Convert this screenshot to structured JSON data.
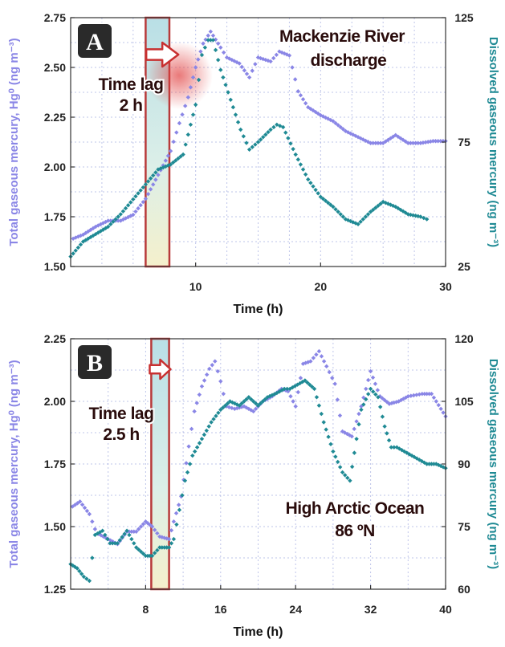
{
  "colors": {
    "tgm": "#8a86e6",
    "dgm": "#1f8a94",
    "lagFill": "#cfe8e8",
    "lagStroke": "#b83a3a",
    "grid": "#8a96d8"
  },
  "chart_data": [
    {
      "type": "scatter",
      "panel_label": "A",
      "xlabel": "Time (h)",
      "ylabel_left": "Total gaseous mercury, Hg⁰ (ng m⁻³)",
      "ylabel_right": "Dissolved gaseous mercury (ng m⁻³)",
      "xlim": [
        0,
        30
      ],
      "ylim_left": [
        1.5,
        2.75
      ],
      "ylim_right": [
        25,
        125
      ],
      "x_ticks": [
        "10",
        "20",
        "30"
      ],
      "y_left_ticks": [
        "1.50",
        "1.75",
        "2.00",
        "2.25",
        "2.50",
        "2.75"
      ],
      "y_right_ticks": [
        "25",
        "75",
        "125"
      ],
      "lag_band": [
        6.0,
        7.9
      ],
      "annotations": {
        "lag": [
          "Time lag",
          "2 h"
        ],
        "site": [
          "Mackenzie River",
          "discharge"
        ]
      },
      "series": [
        {
          "name": "TGM",
          "axis": "left",
          "points": [
            [
              0.2,
              1.64
            ],
            [
              1,
              1.66
            ],
            [
              2,
              1.7
            ],
            [
              3,
              1.73
            ],
            [
              4,
              1.73
            ],
            [
              5,
              1.76
            ],
            [
              6,
              1.84
            ],
            [
              7,
              1.96
            ],
            [
              8,
              2.08
            ],
            [
              8.7,
              2.22
            ],
            [
              9.4,
              2.35
            ],
            [
              10,
              2.5
            ],
            [
              10.6,
              2.62
            ],
            [
              11.2,
              2.68
            ],
            [
              12,
              2.6
            ],
            [
              12.5,
              2.55
            ],
            [
              13.5,
              2.52
            ],
            [
              14.3,
              2.45
            ],
            [
              15,
              2.55
            ],
            [
              16,
              2.53
            ],
            [
              16.7,
              2.58
            ],
            [
              17.5,
              2.56
            ],
            [
              18.2,
              2.38
            ],
            [
              19,
              2.3
            ],
            [
              20,
              2.26
            ],
            [
              21,
              2.23
            ],
            [
              22,
              2.18
            ],
            [
              23,
              2.15
            ],
            [
              24,
              2.12
            ],
            [
              25,
              2.12
            ],
            [
              26,
              2.16
            ],
            [
              27,
              2.12
            ],
            [
              28,
              2.12
            ],
            [
              29,
              2.13
            ],
            [
              30,
              2.13
            ]
          ]
        },
        {
          "name": "DGM",
          "axis": "right",
          "points": [
            [
              0,
              29
            ],
            [
              1,
              35
            ],
            [
              2,
              38
            ],
            [
              3,
              41
            ],
            [
              4,
              46
            ],
            [
              5,
              52
            ],
            [
              6,
              58
            ],
            [
              7,
              64
            ],
            [
              8,
              66
            ],
            [
              9,
              70
            ],
            [
              10,
              90
            ],
            [
              10.5,
              110
            ],
            [
              11,
              116
            ],
            [
              11.4,
              116
            ],
            [
              12,
              104
            ],
            [
              12.8,
              92
            ],
            [
              13.6,
              80
            ],
            [
              14.3,
              72
            ],
            [
              15,
              75
            ],
            [
              16,
              80
            ],
            [
              16.5,
              82
            ],
            [
              17,
              81
            ],
            [
              18,
              70
            ],
            [
              19,
              60
            ],
            [
              20,
              53
            ],
            [
              21,
              49
            ],
            [
              22,
              44
            ],
            [
              23,
              42
            ],
            [
              24,
              47
            ],
            [
              25,
              51
            ],
            [
              26,
              49
            ],
            [
              27,
              46
            ],
            [
              28,
              45
            ],
            [
              28.5,
              44
            ]
          ]
        }
      ]
    },
    {
      "type": "scatter",
      "panel_label": "B",
      "xlabel": "Time (h)",
      "ylabel_left": "Total gaseous mercury, Hg⁰ (ng m⁻³)",
      "ylabel_right": "Dissolved gaseous mercury (ng m⁻³)",
      "xlim": [
        0,
        40
      ],
      "ylim_left": [
        1.25,
        2.25
      ],
      "ylim_right": [
        60,
        120
      ],
      "x_ticks": [
        "8",
        "16",
        "24",
        "32",
        "40"
      ],
      "y_left_ticks": [
        "1.25",
        "1.50",
        "1.75",
        "2.00",
        "2.25"
      ],
      "y_right_ticks": [
        "60",
        "75",
        "90",
        "105",
        "120"
      ],
      "lag_band": [
        8.6,
        10.5
      ],
      "annotations": {
        "lag": [
          "Time lag",
          "2.5 h"
        ],
        "site": [
          "High Arctic Ocean",
          "86 ºN"
        ]
      },
      "series": [
        {
          "name": "TGM",
          "axis": "left",
          "points": [
            [
              0.2,
              1.58
            ],
            [
              1,
              1.6
            ],
            [
              2,
              1.55
            ],
            [
              2.6,
              1.49
            ],
            [
              3,
              1.47
            ],
            [
              4,
              1.45
            ],
            [
              5,
              1.43
            ],
            [
              6,
              1.48
            ],
            [
              7,
              1.48
            ],
            [
              8,
              1.52
            ],
            [
              8.7,
              1.5
            ],
            [
              9.5,
              1.46
            ],
            [
              10.5,
              1.45
            ],
            [
              11,
              1.52
            ],
            [
              11.8,
              1.62
            ],
            [
              12.6,
              1.82
            ],
            [
              13.2,
              1.96
            ],
            [
              14,
              2.06
            ],
            [
              14.8,
              2.13
            ],
            [
              15.4,
              2.16
            ],
            [
              16,
              2.08
            ],
            [
              16.6,
              1.98
            ],
            [
              17.5,
              1.97
            ],
            [
              18.5,
              1.98
            ],
            [
              19.5,
              1.96
            ],
            [
              20.5,
              2.0
            ],
            [
              21.5,
              2.02
            ],
            [
              22.5,
              2.05
            ],
            [
              23.2,
              2.04
            ],
            [
              24,
              1.98
            ],
            [
              24.8,
              2.15
            ],
            [
              25.6,
              2.16
            ],
            [
              26.5,
              2.2
            ],
            [
              27.3,
              2.14
            ],
            [
              28.2,
              2.07
            ],
            [
              29,
              1.88
            ],
            [
              30,
              1.86
            ],
            [
              31,
              1.98
            ],
            [
              32,
              2.12
            ],
            [
              33,
              2.02
            ],
            [
              34,
              1.99
            ],
            [
              35,
              2.0
            ],
            [
              36,
              2.02
            ],
            [
              37.5,
              2.03
            ],
            [
              38.5,
              2.03
            ],
            [
              39.5,
              1.97
            ],
            [
              40,
              1.94
            ]
          ]
        },
        {
          "name": "DGM",
          "axis": "right",
          "points": [
            [
              0,
              66
            ],
            [
              0.7,
              65
            ],
            [
              1.4,
              63
            ],
            [
              2,
              62
            ],
            [
              2.6,
              73
            ],
            [
              3.4,
              74
            ],
            [
              4.2,
              71
            ],
            [
              5,
              71
            ],
            [
              6,
              74
            ],
            [
              7,
              70
            ],
            [
              8,
              68
            ],
            [
              8.7,
              68
            ],
            [
              9.5,
              70
            ],
            [
              10.5,
              70
            ],
            [
              11,
              72
            ],
            [
              11.6,
              79
            ],
            [
              12.2,
              86
            ],
            [
              13,
              92
            ],
            [
              14,
              96
            ],
            [
              15,
              100
            ],
            [
              16,
              103
            ],
            [
              17,
              105
            ],
            [
              18,
              104
            ],
            [
              19,
              106
            ],
            [
              20,
              104
            ],
            [
              21,
              106
            ],
            [
              22,
              107
            ],
            [
              22.8,
              108
            ],
            [
              23.4,
              108
            ],
            [
              25,
              110
            ],
            [
              26,
              108
            ],
            [
              27,
              100
            ],
            [
              28,
              93
            ],
            [
              29,
              88
            ],
            [
              29.8,
              86
            ],
            [
              30.5,
              96
            ],
            [
              31,
              103
            ],
            [
              32,
              108
            ],
            [
              32.8,
              106
            ],
            [
              33.5,
              99
            ],
            [
              34.2,
              94
            ],
            [
              34.8,
              94
            ],
            [
              38,
              90
            ],
            [
              39,
              90
            ],
            [
              40,
              89
            ]
          ]
        }
      ]
    }
  ]
}
